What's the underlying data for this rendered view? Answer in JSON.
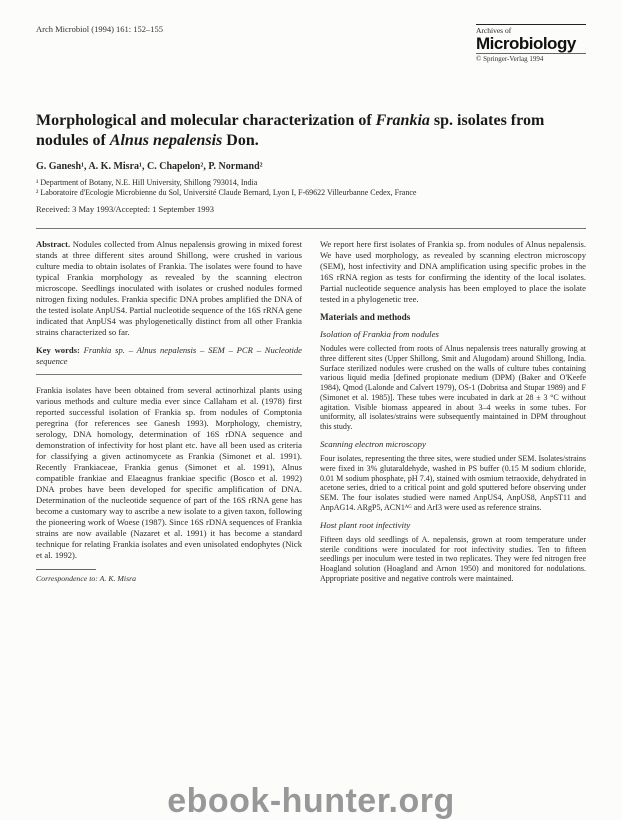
{
  "header": {
    "runningHead": "Arch Microbiol (1994) 161: 152–155",
    "journalArchives": "Archives of",
    "journalTitle": "Microbiology",
    "copyright": "© Springer-Verlag 1994"
  },
  "title": {
    "line1": "Morphological and molecular characterization of ",
    "italic1": "Frankia",
    "line2": " sp. isolates from nodules of ",
    "italic2": "Alnus nepalensis",
    "line3": " Don."
  },
  "authors": "G. Ganesh¹, A. K. Misra¹, C. Chapelon², P. Normand²",
  "affiliations": {
    "a1": "¹ Department of Botany, N.E. Hill University, Shillong 793014, India",
    "a2": "² Laboratoire d'Ecologie Microbienne du Sol, Université Claude Bernard, Lyon I, F-69622 Villeurbanne Cedex, France"
  },
  "dates": "Received: 3 May 1993/Accepted: 1 September 1993",
  "leftCol": {
    "abstractLabel": "Abstract.",
    "abstract": " Nodules collected from Alnus nepalensis growing in mixed forest stands at three different sites around Shillong, were crushed in various culture media to obtain isolates of Frankia. The isolates were found to have typical Frankia morphology as revealed by the scanning electron microscope. Seedlings inoculated with isolates or crushed nodules formed nitrogen fixing nodules. Frankia specific DNA probes amplified the DNA of the tested isolate AnpUS4. Partial nucleotide sequence of the 16S rRNA gene indicated that AnpUS4 was phylogenetically distinct from all other Frankia strains characterized so far.",
    "keywordsLabel": "Key words:",
    "keywords": " Frankia sp. – Alnus nepalensis – SEM – PCR – Nucleotide sequence",
    "body1": "Frankia isolates have been obtained from several actinorhizal plants using various methods and culture media ever since Callaham et al. (1978) first reported successful isolation of Frankia sp. from nodules of Comptonia peregrina (for references see Ganesh 1993). Morphology, chemistry, serology, DNA homology, determination of 16S rDNA sequence and demonstration of infectivity for host plant etc. have all been used as criteria for classifying a given actinomycete as Frankia (Simonet et al. 1991). Recently Frankiaceae, Frankia genus (Simonet et al. 1991), Alnus compatible frankiae and Elaeagnus frankiae specific (Bosco et al. 1992) DNA probes have been developed for specific amplification of DNA. Determination of the nucleotide sequence of part of the 16S rRNA gene has become a customary way to ascribe a new isolate to a given taxon, following the pioneering work of Woese (1987). Since 16S rDNA sequences of Frankia strains are now available (Nazaret et al. 1991) it has become a standard technique for relating Frankia isolates and even unisolated endophytes (Nick et al. 1992).",
    "correspondence": "Correspondence to: A. K. Misra"
  },
  "rightCol": {
    "intro": "We report here first isolates of Frankia sp. from nodules of Alnus nepalensis. We have used morphology, as revealed by scanning electron microscopy (SEM), host infectivity and DNA amplification using specific probes in the 16S rRNA region as tests for confirming the identity of the local isolates. Partial nucleotide sequence analysis has been employed to place the isolate tested in a phylogenetic tree.",
    "methodsHead": "Materials and methods",
    "sub1Head": "Isolation of Frankia from nodules",
    "sub1Body": "Nodules were collected from roots of Alnus nepalensis trees naturally growing at three different sites (Upper Shillong, Smit and Alugodam) around Shillong, India. Surface sterilized nodules were crushed on the walls of culture tubes containing various liquid media [defined propionate medium (DPM) (Baker and O'Keefe 1984), Qmod (Lalonde and Calvert 1979), OS-1 (Dobritsa and Stupar 1989) and F (Simonet et al. 1985)]. These tubes were incubated in dark at 28 ± 3 °C without agitation. Visible biomass appeared in about 3–4 weeks in some tubes. For uniformity, all isolates/strains were subsequently maintained in DPM throughout this study.",
    "sub2Head": "Scanning electron microscopy",
    "sub2Body": "Four isolates, representing the three sites, were studied under SEM. Isolates/strains were fixed in 3% glutaraldehyde, washed in PS buffer (0.15 M sodium chloride, 0.01 M sodium phosphate, pH 7.4), stained with osmium tetraoxide, dehydrated in acetone series, dried to a critical point and gold sputtered before observing under SEM. The four isolates studied were named AnpUS4, AnpUS8, AnpST11 and AnpAG14. ARgP5, ACN1ᴬᴳ and ArI3 were used as reference strains.",
    "sub3Head": "Host plant root infectivity",
    "sub3Body": "Fifteen days old seedlings of A. nepalensis, grown at room temperature under sterile conditions were inoculated for root infectivity studies. Ten to fifteen seedlings per inoculum were tested in two replicates. They were fed nitrogen free Hoagland solution (Hoagland and Arnon 1950) and monitored for nodulations. Appropriate positive and negative controls were maintained."
  },
  "watermark": "ebook-hunter.org"
}
